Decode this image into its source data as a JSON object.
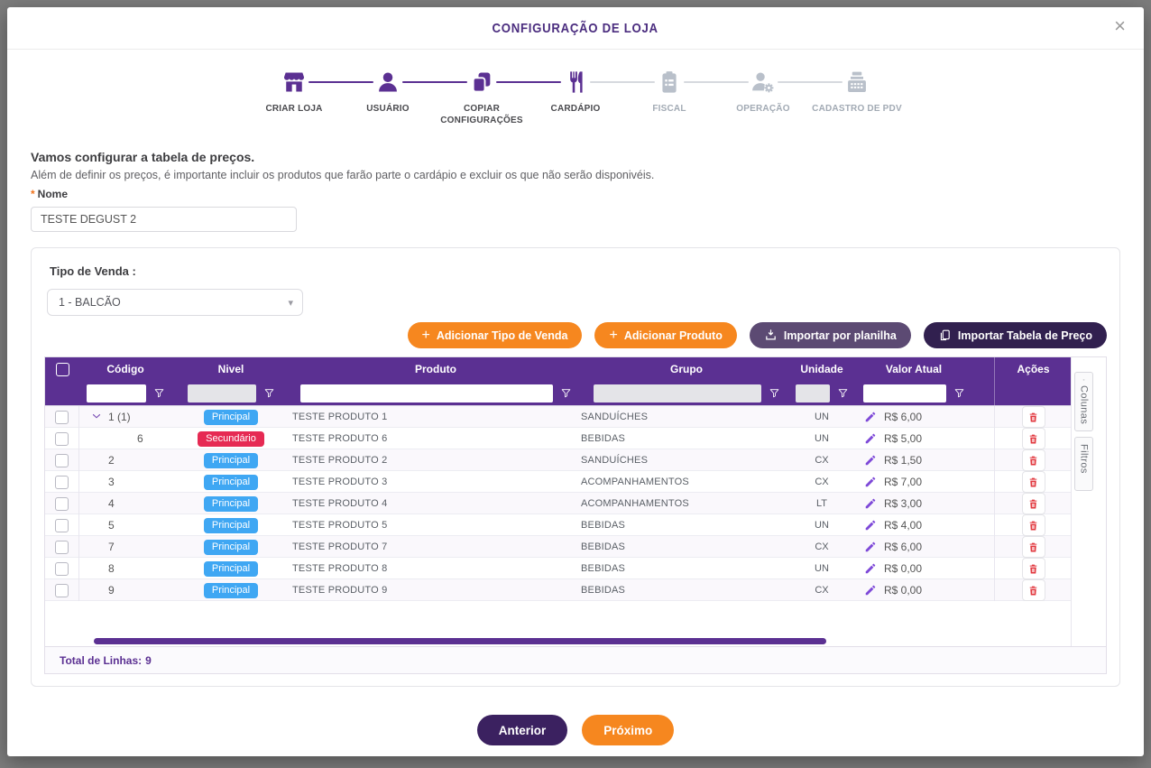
{
  "modal": {
    "title": "CONFIGURAÇÃO DE LOJA",
    "close_label": "×"
  },
  "stepper": {
    "steps": [
      {
        "label": "CRIAR LOJA",
        "icon": "store-icon",
        "state": "done"
      },
      {
        "label": "USUÁRIO",
        "icon": "user-icon",
        "state": "done"
      },
      {
        "label": "COPIAR CONFIGURAÇÕES",
        "icon": "copy-icon",
        "state": "done"
      },
      {
        "label": "CARDÁPIO",
        "icon": "menu-utensils-icon",
        "state": "current"
      },
      {
        "label": "FISCAL",
        "icon": "fiscal-clipboard-icon",
        "state": "upcoming"
      },
      {
        "label": "OPERAÇÃO",
        "icon": "operation-user-gear-icon",
        "state": "upcoming"
      },
      {
        "label": "CADASTRO DE PDV",
        "icon": "pos-register-icon",
        "state": "upcoming"
      }
    ]
  },
  "intro": {
    "heading": "Vamos configurar a tabela de preços.",
    "description": "Além de definir os preços, é importante incluir os produtos que farão parte o cardápio e excluir os que não serão disponivéis.",
    "required_mark": "*",
    "name_label": "Nome",
    "name_value": "TESTE DEGUST 2"
  },
  "sale_type": {
    "label": "Tipo de Venda :",
    "selected": "1 - BALCÃO"
  },
  "actions": {
    "add_sale_type": "Adicionar Tipo de Venda",
    "add_product": "Adicionar Produto",
    "import_sheet": "Importar por planilha",
    "import_price_table": "Importar Tabela de Preço"
  },
  "table": {
    "columns": [
      "Código",
      "Nivel",
      "Produto",
      "Grupo",
      "Unidade",
      "Valor Atual",
      "Ações"
    ],
    "rows": [
      {
        "codigo": "1 (1)",
        "expandable": true,
        "child": false,
        "nivel": "Principal",
        "nivel_type": "principal",
        "produto": "TESTE PRODUTO 1",
        "grupo": "SANDUÍCHES",
        "unidade": "UN",
        "valor": "R$ 6,00"
      },
      {
        "codigo": "6",
        "expandable": false,
        "child": true,
        "nivel": "Secundário",
        "nivel_type": "secundario",
        "produto": "TESTE PRODUTO 6",
        "grupo": "BEBIDAS",
        "unidade": "UN",
        "valor": "R$ 5,00"
      },
      {
        "codigo": "2",
        "expandable": false,
        "child": false,
        "nivel": "Principal",
        "nivel_type": "principal",
        "produto": "TESTE PRODUTO 2",
        "grupo": "SANDUÍCHES",
        "unidade": "CX",
        "valor": "R$ 1,50"
      },
      {
        "codigo": "3",
        "expandable": false,
        "child": false,
        "nivel": "Principal",
        "nivel_type": "principal",
        "produto": "TESTE PRODUTO 3",
        "grupo": "ACOMPANHAMENTOS",
        "unidade": "CX",
        "valor": "R$ 7,00"
      },
      {
        "codigo": "4",
        "expandable": false,
        "child": false,
        "nivel": "Principal",
        "nivel_type": "principal",
        "produto": "TESTE PRODUTO 4",
        "grupo": "ACOMPANHAMENTOS",
        "unidade": "LT",
        "valor": "R$ 3,00"
      },
      {
        "codigo": "5",
        "expandable": false,
        "child": false,
        "nivel": "Principal",
        "nivel_type": "principal",
        "produto": "TESTE PRODUTO 5",
        "grupo": "BEBIDAS",
        "unidade": "UN",
        "valor": "R$ 4,00"
      },
      {
        "codigo": "7",
        "expandable": false,
        "child": false,
        "nivel": "Principal",
        "nivel_type": "principal",
        "produto": "TESTE PRODUTO 7",
        "grupo": "BEBIDAS",
        "unidade": "CX",
        "valor": "R$ 6,00"
      },
      {
        "codigo": "8",
        "expandable": false,
        "child": false,
        "nivel": "Principal",
        "nivel_type": "principal",
        "produto": "TESTE PRODUTO 8",
        "grupo": "BEBIDAS",
        "unidade": "UN",
        "valor": "R$ 0,00"
      },
      {
        "codigo": "9",
        "expandable": false,
        "child": false,
        "nivel": "Principal",
        "nivel_type": "principal",
        "produto": "TESTE PRODUTO 9",
        "grupo": "BEBIDAS",
        "unidade": "CX",
        "valor": "R$ 0,00"
      }
    ],
    "footer": {
      "total_label": "Total de Linhas:",
      "total_value": "9"
    },
    "side_tabs": [
      "Colunas",
      "Filtros"
    ]
  },
  "nav": {
    "previous": "Anterior",
    "next": "Próximo"
  },
  "colors": {
    "accent_purple": "#5b3092",
    "dark_purple": "#31204f",
    "muted_purple": "#5c4a73",
    "nav_purple": "#3b2160",
    "orange": "#f6871f",
    "principal": "#3fa7f3",
    "secundario": "#e62a53",
    "danger": "#e2383f"
  }
}
